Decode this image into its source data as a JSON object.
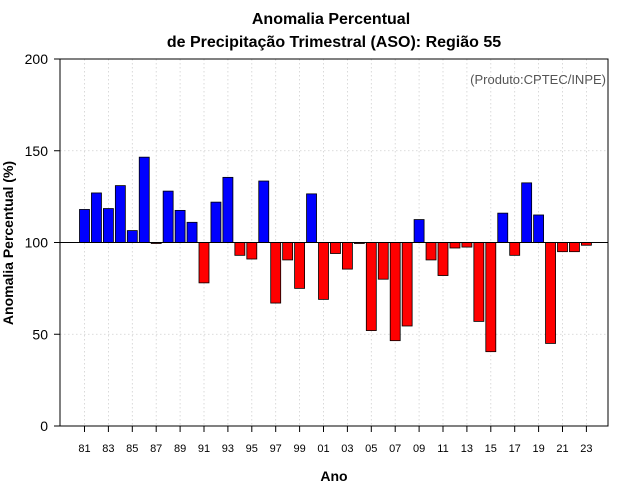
{
  "chart_data": {
    "type": "bar",
    "title": "Anomalia Percentual",
    "subtitle": "de Precipitação Trimestral (ASO): Região 55",
    "xlabel": "Ano",
    "ylabel": "Anomalia Percentual (%)",
    "annotation": "(Produto:CPTEC/INPE)",
    "ylim": [
      0,
      200
    ],
    "yticks": [
      0,
      50,
      100,
      150,
      200
    ],
    "baseline": 100,
    "grid": true,
    "colors": {
      "above": "#0000ff",
      "below": "#ff0000",
      "outline": "#000000"
    },
    "categories": [
      "1981",
      "1982",
      "1983",
      "1984",
      "1985",
      "1986",
      "1987",
      "1988",
      "1989",
      "1990",
      "1991",
      "1992",
      "1993",
      "1994",
      "1995",
      "1996",
      "1997",
      "1998",
      "1999",
      "2000",
      "2001",
      "2002",
      "2003",
      "2004",
      "2005",
      "2006",
      "2007",
      "2008",
      "2009",
      "2010",
      "2011",
      "2012",
      "2013",
      "2014",
      "2015",
      "2016",
      "2017",
      "2018",
      "2019",
      "2020",
      "2021",
      "2022",
      "2023"
    ],
    "values": [
      118,
      127,
      118.5,
      131,
      106.5,
      146.5,
      99.5,
      128,
      117.5,
      111,
      78,
      122,
      135.5,
      93,
      91,
      133.5,
      67,
      90.5,
      75,
      126.5,
      69,
      94,
      85.5,
      99.5,
      52,
      80,
      46.5,
      54.5,
      112.5,
      90.5,
      82,
      97,
      97.5,
      57,
      40.5,
      116,
      93,
      132.5,
      115,
      45,
      95,
      95,
      98.5
    ],
    "xtick_labels": [
      "81",
      "83",
      "85",
      "87",
      "89",
      "91",
      "93",
      "95",
      "97",
      "99",
      "01",
      "03",
      "05",
      "07",
      "09",
      "11",
      "13",
      "15",
      "17",
      "19",
      "21",
      "23"
    ]
  }
}
